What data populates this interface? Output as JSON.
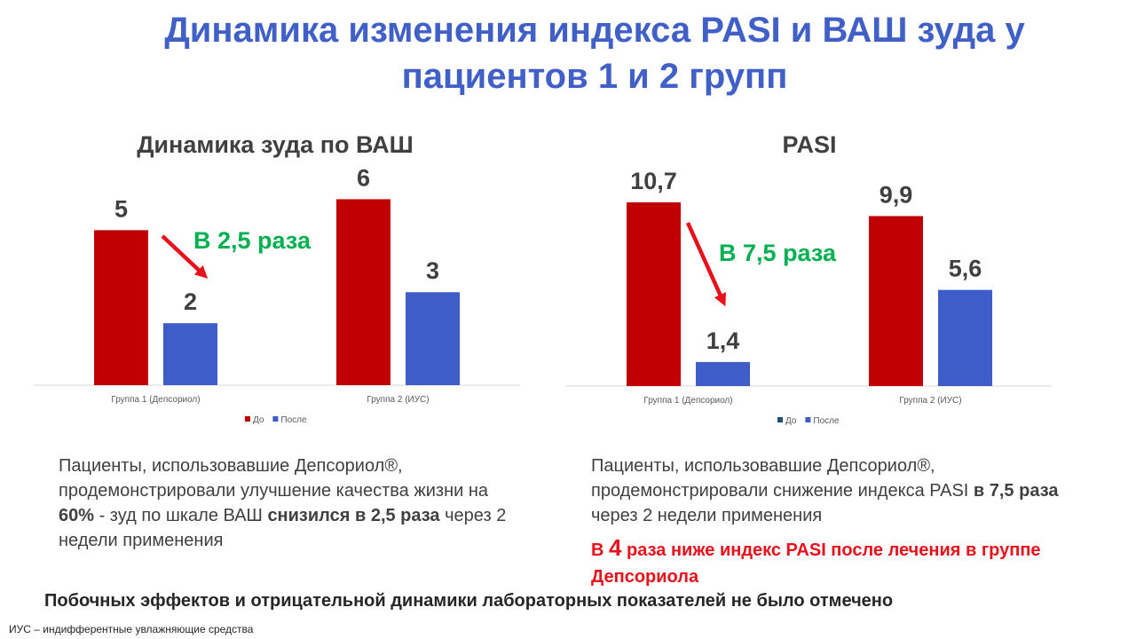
{
  "title": "Динамика изменения индекса PASI и ВАШ зуда у пациентов 1 и 2 групп",
  "chart_data": [
    {
      "type": "bar",
      "title": "Динамика зуда по ВАШ",
      "categories": [
        "Группа 1 (Депсориол)",
        "Группа 2 (ИУС)"
      ],
      "series": [
        {
          "name": "До",
          "values": [
            5,
            6
          ],
          "color": "#C00000"
        },
        {
          "name": "После",
          "values": [
            2,
            3
          ],
          "color": "#3F5DC9"
        }
      ],
      "data_labels": [
        [
          "5",
          "6"
        ],
        [
          "2",
          "3"
        ]
      ],
      "ylim": [
        0,
        6.5
      ],
      "annotation": "В 2,5 раза",
      "grid": false,
      "legend": "bottom"
    },
    {
      "type": "bar",
      "title": "PASI",
      "categories": [
        "Группа 1 (Депсориол)",
        "Группа 2 (ИУС)"
      ],
      "series": [
        {
          "name": "До",
          "values": [
            10.7,
            9.9
          ],
          "color": "#C00000",
          "legend_color": "#1F4E79"
        },
        {
          "name": "После",
          "values": [
            1.4,
            5.6
          ],
          "color": "#3F5DC9"
        }
      ],
      "data_labels": [
        [
          "10,7",
          "9,9"
        ],
        [
          "1,4",
          "5,6"
        ]
      ],
      "ylim": [
        0,
        10.7
      ],
      "annotation": "В 7,5 раза",
      "grid": false,
      "legend": "bottom"
    }
  ],
  "left_text": {
    "p1": "Пациенты, использовавшие Депсориол®, продемонстрировали улучшение качества жизни на ",
    "b1": "60%",
    "p2": " -  зуд по шкале ВАШ ",
    "b2": "снизился в 2,5 раза",
    "p3": " через 2 недели применения"
  },
  "right_text": {
    "p1": "Пациенты, использовавшие Депсориол®, продемонстрировали снижение индекса PASI",
    "b1": " в 7,5 раза",
    "p2": " через 2 недели применения"
  },
  "red_note": {
    "pre": "В ",
    "big": "4",
    "post": " раза ниже индекс PASI после лечения в группе Депсориола"
  },
  "footer_note": "Побочных эффектов и отрицательной динамики лабораторных показателей не было отмечено",
  "footnote": "ИУС – индифферентные увлажняющие средства"
}
